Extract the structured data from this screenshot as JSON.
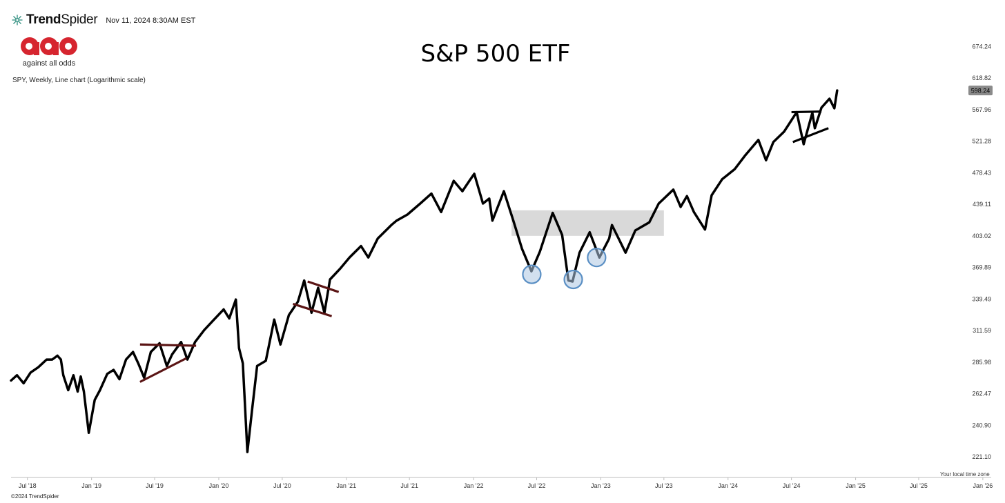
{
  "header": {
    "brand_name_bold": "Trend",
    "brand_name_light": "Spider",
    "timestamp": "Nov 11, 2024 8:30AM EST"
  },
  "watermark_logo": {
    "logo_text": "aao",
    "tagline": "against all odds",
    "brand_color": "#d6252f"
  },
  "chart_info": "SPY, Weekly, Line chart (Logarithmic scale)",
  "footer": {
    "copyright": "©2024 TrendSpider",
    "time_zone": "Your local time zone"
  },
  "chart_data": {
    "type": "line",
    "title": "S&P 500 ETF",
    "y_scale": "log",
    "ylim": [
      211.0,
      690.0
    ],
    "xlim": [
      "2018-05-15",
      "2026-01-25"
    ],
    "grid": false,
    "y_ticks": [
      "674.24",
      "618.82",
      "567.96",
      "521.28",
      "478.43",
      "439.11",
      "403.02",
      "369.89",
      "339.49",
      "311.59",
      "285.98",
      "262.47",
      "240.90",
      "221.10"
    ],
    "x_ticks": [
      {
        "label": "Jul '18",
        "date": "2018-07-01"
      },
      {
        "label": "Jan '19",
        "date": "2019-01-01"
      },
      {
        "label": "Jul '19",
        "date": "2019-07-01"
      },
      {
        "label": "Jan '20",
        "date": "2020-01-01"
      },
      {
        "label": "Jul '20",
        "date": "2020-07-01"
      },
      {
        "label": "Jan '21",
        "date": "2021-01-01"
      },
      {
        "label": "Jul '21",
        "date": "2021-07-01"
      },
      {
        "label": "Jan '22",
        "date": "2022-01-01"
      },
      {
        "label": "Jul '22",
        "date": "2022-07-01"
      },
      {
        "label": "Jan '23",
        "date": "2023-01-01"
      },
      {
        "label": "Jul '23",
        "date": "2023-07-01"
      },
      {
        "label": "Jan '24",
        "date": "2024-01-01"
      },
      {
        "label": "Jul '24",
        "date": "2024-07-01"
      },
      {
        "label": "Jan '25",
        "date": "2025-01-01"
      },
      {
        "label": "Jul '25",
        "date": "2025-07-01"
      },
      {
        "label": "Jan '26",
        "date": "2026-01-01"
      }
    ],
    "last_price_label": "598.24",
    "line_color": "#000000",
    "series": [
      {
        "points": [
          [
            "2018-05-15",
            272
          ],
          [
            "2018-06-01",
            276
          ],
          [
            "2018-06-20",
            270
          ],
          [
            "2018-07-10",
            278
          ],
          [
            "2018-08-01",
            282
          ],
          [
            "2018-08-25",
            288
          ],
          [
            "2018-09-10",
            288
          ],
          [
            "2018-09-25",
            291
          ],
          [
            "2018-10-05",
            288
          ],
          [
            "2018-10-12",
            276
          ],
          [
            "2018-10-26",
            265
          ],
          [
            "2018-11-10",
            276
          ],
          [
            "2018-11-22",
            264
          ],
          [
            "2018-12-01",
            275
          ],
          [
            "2018-12-10",
            264
          ],
          [
            "2018-12-24",
            236
          ],
          [
            "2019-01-10",
            258
          ],
          [
            "2019-01-25",
            265
          ],
          [
            "2019-02-15",
            277
          ],
          [
            "2019-03-05",
            280
          ],
          [
            "2019-03-22",
            273
          ],
          [
            "2019-04-10",
            288
          ],
          [
            "2019-04-30",
            294
          ],
          [
            "2019-05-15",
            285
          ],
          [
            "2019-06-01",
            274
          ],
          [
            "2019-06-20",
            294
          ],
          [
            "2019-07-15",
            301
          ],
          [
            "2019-08-05",
            283
          ],
          [
            "2019-08-20",
            292
          ],
          [
            "2019-09-15",
            302
          ],
          [
            "2019-10-03",
            288
          ],
          [
            "2019-10-25",
            302
          ],
          [
            "2019-11-20",
            312
          ],
          [
            "2019-12-15",
            320
          ],
          [
            "2020-01-15",
            330
          ],
          [
            "2020-01-31",
            322
          ],
          [
            "2020-02-19",
            339
          ],
          [
            "2020-02-28",
            297
          ],
          [
            "2020-03-10",
            285
          ],
          [
            "2020-03-23",
            224
          ],
          [
            "2020-04-05",
            250
          ],
          [
            "2020-04-20",
            283
          ],
          [
            "2020-05-15",
            287
          ],
          [
            "2020-06-08",
            321
          ],
          [
            "2020-06-26",
            300
          ],
          [
            "2020-07-20",
            325
          ],
          [
            "2020-08-15",
            337
          ],
          [
            "2020-09-02",
            357
          ],
          [
            "2020-09-23",
            327
          ],
          [
            "2020-10-12",
            350
          ],
          [
            "2020-10-30",
            327
          ],
          [
            "2020-11-15",
            358
          ],
          [
            "2020-12-15",
            369
          ],
          [
            "2021-01-10",
            380
          ],
          [
            "2021-02-12",
            392
          ],
          [
            "2021-03-05",
            380
          ],
          [
            "2021-04-01",
            400
          ],
          [
            "2021-05-10",
            415
          ],
          [
            "2021-05-25",
            420
          ],
          [
            "2021-06-25",
            427
          ],
          [
            "2021-08-01",
            440
          ],
          [
            "2021-09-02",
            452
          ],
          [
            "2021-09-30",
            430
          ],
          [
            "2021-11-05",
            468
          ],
          [
            "2021-11-30",
            455
          ],
          [
            "2021-12-20",
            468
          ],
          [
            "2022-01-03",
            477
          ],
          [
            "2022-01-28",
            440
          ],
          [
            "2022-02-15",
            446
          ],
          [
            "2022-02-24",
            420
          ],
          [
            "2022-03-29",
            455
          ],
          [
            "2022-04-25",
            420
          ],
          [
            "2022-05-20",
            389
          ],
          [
            "2022-06-16",
            366
          ],
          [
            "2022-07-10",
            386
          ],
          [
            "2022-08-16",
            429
          ],
          [
            "2022-09-12",
            404
          ],
          [
            "2022-09-30",
            357
          ],
          [
            "2022-10-12",
            356
          ],
          [
            "2022-11-01",
            385
          ],
          [
            "2022-11-30",
            407
          ],
          [
            "2022-12-28",
            380
          ],
          [
            "2023-01-25",
            400
          ],
          [
            "2023-02-02",
            415
          ],
          [
            "2023-03-13",
            385
          ],
          [
            "2023-04-10",
            409
          ],
          [
            "2023-05-20",
            418
          ],
          [
            "2023-06-16",
            440
          ],
          [
            "2023-07-28",
            457
          ],
          [
            "2023-08-18",
            436
          ],
          [
            "2023-09-05",
            449
          ],
          [
            "2023-09-25",
            430
          ],
          [
            "2023-10-27",
            410
          ],
          [
            "2023-11-15",
            450
          ],
          [
            "2023-12-15",
            470
          ],
          [
            "2024-01-20",
            483
          ],
          [
            "2024-02-20",
            502
          ],
          [
            "2024-03-28",
            523
          ],
          [
            "2024-04-19",
            495
          ],
          [
            "2024-05-10",
            520
          ],
          [
            "2024-06-10",
            535
          ],
          [
            "2024-07-16",
            564
          ],
          [
            "2024-08-05",
            517
          ],
          [
            "2024-08-30",
            563
          ],
          [
            "2024-09-06",
            540
          ],
          [
            "2024-09-25",
            571
          ],
          [
            "2024-10-18",
            585
          ],
          [
            "2024-11-01",
            570
          ],
          [
            "2024-11-09",
            598.24
          ]
        ]
      }
    ],
    "annotations": {
      "trendlines": [
        {
          "color": "#5a1414",
          "points": [
            [
              "2019-05-20",
              300
            ],
            [
              "2019-10-28",
              299
            ]
          ]
        },
        {
          "color": "#5a1414",
          "points": [
            [
              "2019-05-20",
              271
            ],
            [
              "2019-09-30",
              289
            ]
          ]
        },
        {
          "color": "#5a1414",
          "points": [
            [
              "2020-08-01",
              335
            ],
            [
              "2020-11-20",
              324
            ]
          ]
        },
        {
          "color": "#5a1414",
          "points": [
            [
              "2020-09-12",
              356
            ],
            [
              "2020-12-10",
              346
            ]
          ]
        },
        {
          "color": "#000000",
          "points": [
            [
              "2024-07-01",
              564
            ],
            [
              "2024-09-25",
              565
            ]
          ]
        },
        {
          "color": "#000000",
          "points": [
            [
              "2024-07-05",
              520
            ],
            [
              "2024-10-15",
              540
            ]
          ]
        }
      ],
      "shaded_zone": {
        "x": [
          "2022-04-20",
          "2023-07-01"
        ],
        "y": [
          403,
          432
        ],
        "color": "#d9d9d9"
      },
      "circles": [
        {
          "date": "2022-06-17",
          "value": 363,
          "color": "#5a8fc4"
        },
        {
          "date": "2022-10-14",
          "value": 358,
          "color": "#5a8fc4"
        },
        {
          "date": "2022-12-20",
          "value": 380,
          "color": "#5a8fc4"
        }
      ]
    }
  }
}
